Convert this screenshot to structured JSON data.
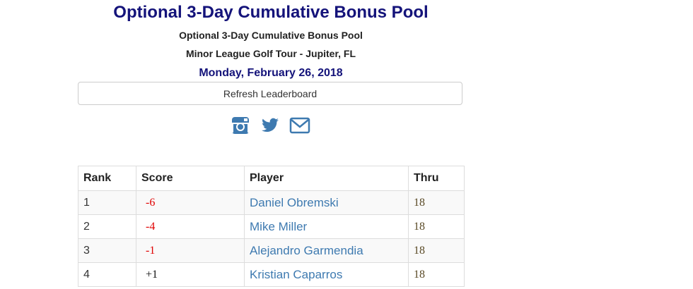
{
  "header": {
    "title": "Optional 3-Day Cumulative Bonus Pool",
    "subtitle": "Optional 3-Day Cumulative Bonus Pool",
    "tour": "Minor League Golf Tour - Jupiter, FL",
    "date": "Monday, February 26, 2018"
  },
  "refresh_label": "Refresh Leaderboard",
  "social": {
    "icons": [
      "instagram-icon",
      "twitter-icon",
      "email-icon"
    ],
    "color": "#3e7ab0"
  },
  "colors": {
    "title": "#14137a",
    "link": "#3e7ab0",
    "negative_score": "#e00000",
    "thru": "#5a4a26"
  },
  "table": {
    "headers": {
      "rank": "Rank",
      "score": "Score",
      "player": "Player",
      "thru": "Thru"
    },
    "rows": [
      {
        "rank": "1",
        "score": "-6",
        "player": "Daniel Obremski",
        "thru": "18"
      },
      {
        "rank": "2",
        "score": "-4",
        "player": "Mike Miller",
        "thru": "18"
      },
      {
        "rank": "3",
        "score": "-1",
        "player": "Alejandro Garmendia",
        "thru": "18"
      },
      {
        "rank": "4",
        "score": "+1",
        "player": "Kristian Caparros",
        "thru": "18"
      }
    ]
  }
}
